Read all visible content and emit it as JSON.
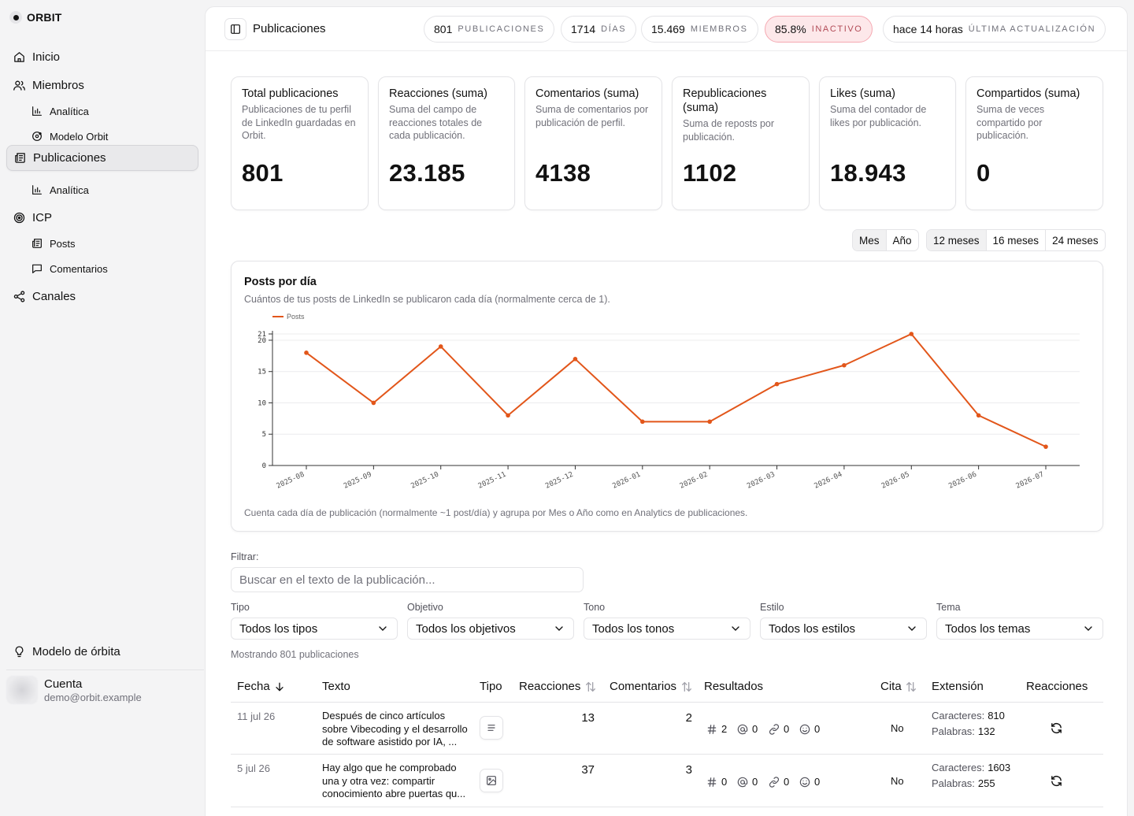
{
  "sidebar": {
    "brand": "ORBIT",
    "items": [
      {
        "label": "Inicio",
        "icon": "home-icon"
      },
      {
        "label": "Miembros",
        "icon": "users-icon"
      },
      {
        "label": "Analítica",
        "icon": "bar-chart-icon"
      },
      {
        "label": "Modelo Orbit",
        "icon": "orbit-icon"
      },
      {
        "label": "Publicaciones",
        "icon": "newspaper-icon",
        "active": true
      },
      {
        "label": "Analítica",
        "icon": "bar-chart-icon"
      },
      {
        "label": "ICP",
        "icon": "target-icon"
      },
      {
        "label": "Posts",
        "icon": "newspaper-icon"
      },
      {
        "label": "Comentarios",
        "icon": "comment-icon"
      },
      {
        "label": "Canales",
        "icon": "share-icon"
      }
    ],
    "footer_item": "Modelo de órbita",
    "account": {
      "name": "Cuenta",
      "email": "demo@orbit.example"
    }
  },
  "header": {
    "title": "Publicaciones",
    "stats": [
      {
        "value": "801",
        "label": "PUBLICACIONES"
      },
      {
        "value": "1714",
        "label": "DÍAS"
      },
      {
        "value": "15.469",
        "label": "MIEMBROS"
      },
      {
        "value": "85.8%",
        "label": "INACTIVO",
        "alert": true
      },
      {
        "value": "hace 14 horas",
        "label": "ÚLTIMA ACTUALIZACIÓN"
      }
    ]
  },
  "kpis": [
    {
      "title": "Total publicaciones",
      "desc": "Publicaciones de tu perfil de LinkedIn guardadas en Orbit.",
      "value": "801"
    },
    {
      "title": "Reacciones (suma)",
      "desc": "Suma del campo de reacciones totales de cada publicación.",
      "value": "23.185"
    },
    {
      "title": "Comentarios (suma)",
      "desc": "Suma de comentarios por publicación de perfil.",
      "value": "4138"
    },
    {
      "title": "Republicaciones (suma)",
      "desc": "Suma de reposts por publicación.",
      "value": "1102"
    },
    {
      "title": "Likes (suma)",
      "desc": "Suma del contador de likes por publicación.",
      "value": "18.943"
    },
    {
      "title": "Compartidos (suma)",
      "desc": "Suma de veces compartido por publicación.",
      "value": "0"
    }
  ],
  "granularity": {
    "options": [
      "Mes",
      "Año"
    ],
    "selected": "Mes"
  },
  "range": {
    "options": [
      "12 meses",
      "16 meses",
      "24 meses"
    ],
    "selected": "12 meses"
  },
  "chart": {
    "title": "Posts por día",
    "subtitle": "Cuántos de tus posts de LinkedIn se publicaron cada día (normalmente cerca de 1).",
    "footnote": "Cuenta cada día de publicación (normalmente ~1 post/día) y agrupa por Mes o Año como en Analytics de publicaciones."
  },
  "chart_data": {
    "type": "line",
    "x": [
      "2025-08",
      "2025-09",
      "2025-10",
      "2025-11",
      "2025-12",
      "2026-01",
      "2026-02",
      "2026-03",
      "2026-04",
      "2026-05",
      "2026-06",
      "2026-07"
    ],
    "series": [
      {
        "name": "Posts",
        "values": [
          18,
          10,
          19,
          8,
          17,
          7,
          7,
          13,
          16,
          21,
          8,
          3
        ],
        "color": "#e2561a"
      }
    ],
    "yticks": [
      0,
      5,
      10,
      15,
      20,
      21
    ],
    "ylim": [
      0,
      21
    ],
    "grid": true,
    "legend": "top-left"
  },
  "filters": {
    "label": "Filtrar:",
    "search_placeholder": "Buscar en el texto de la publicación...",
    "selects": [
      {
        "label": "Tipo",
        "value": "Todos los tipos"
      },
      {
        "label": "Objetivo",
        "value": "Todos los objetivos"
      },
      {
        "label": "Tono",
        "value": "Todos los tonos"
      },
      {
        "label": "Estilo",
        "value": "Todos los estilos"
      },
      {
        "label": "Tema",
        "value": "Todos los temas"
      }
    ],
    "showing": "Mostrando 801 publicaciones"
  },
  "table": {
    "columns": [
      "Fecha",
      "Texto",
      "Tipo",
      "Reacciones",
      "Comentarios",
      "Resultados",
      "Cita",
      "Extensión",
      "Reacciones"
    ],
    "rows": [
      {
        "date": "11 jul 26",
        "text": "Después de cinco artículos sobre Vibecoding y el desarrollo de software asistido por IA, ...",
        "type_icon": "text-lines-icon",
        "reactions": "13",
        "comments": "2",
        "results": {
          "hashtags": "2",
          "mentions": "0",
          "links": "0",
          "emojis": "0"
        },
        "quote": "No",
        "chars_label": "Caracteres:",
        "chars": "810",
        "words_label": "Palabras:",
        "words": "132"
      },
      {
        "date": "5 jul 26",
        "text": "Hay algo que he comprobado una y otra vez: compartir conocimiento abre puertas qu...",
        "type_icon": "image-icon",
        "reactions": "37",
        "comments": "3",
        "results": {
          "hashtags": "0",
          "mentions": "0",
          "links": "0",
          "emojis": "0"
        },
        "quote": "No",
        "chars_label": "Caracteres:",
        "chars": "1603",
        "words_label": "Palabras:",
        "words": "255"
      }
    ]
  }
}
